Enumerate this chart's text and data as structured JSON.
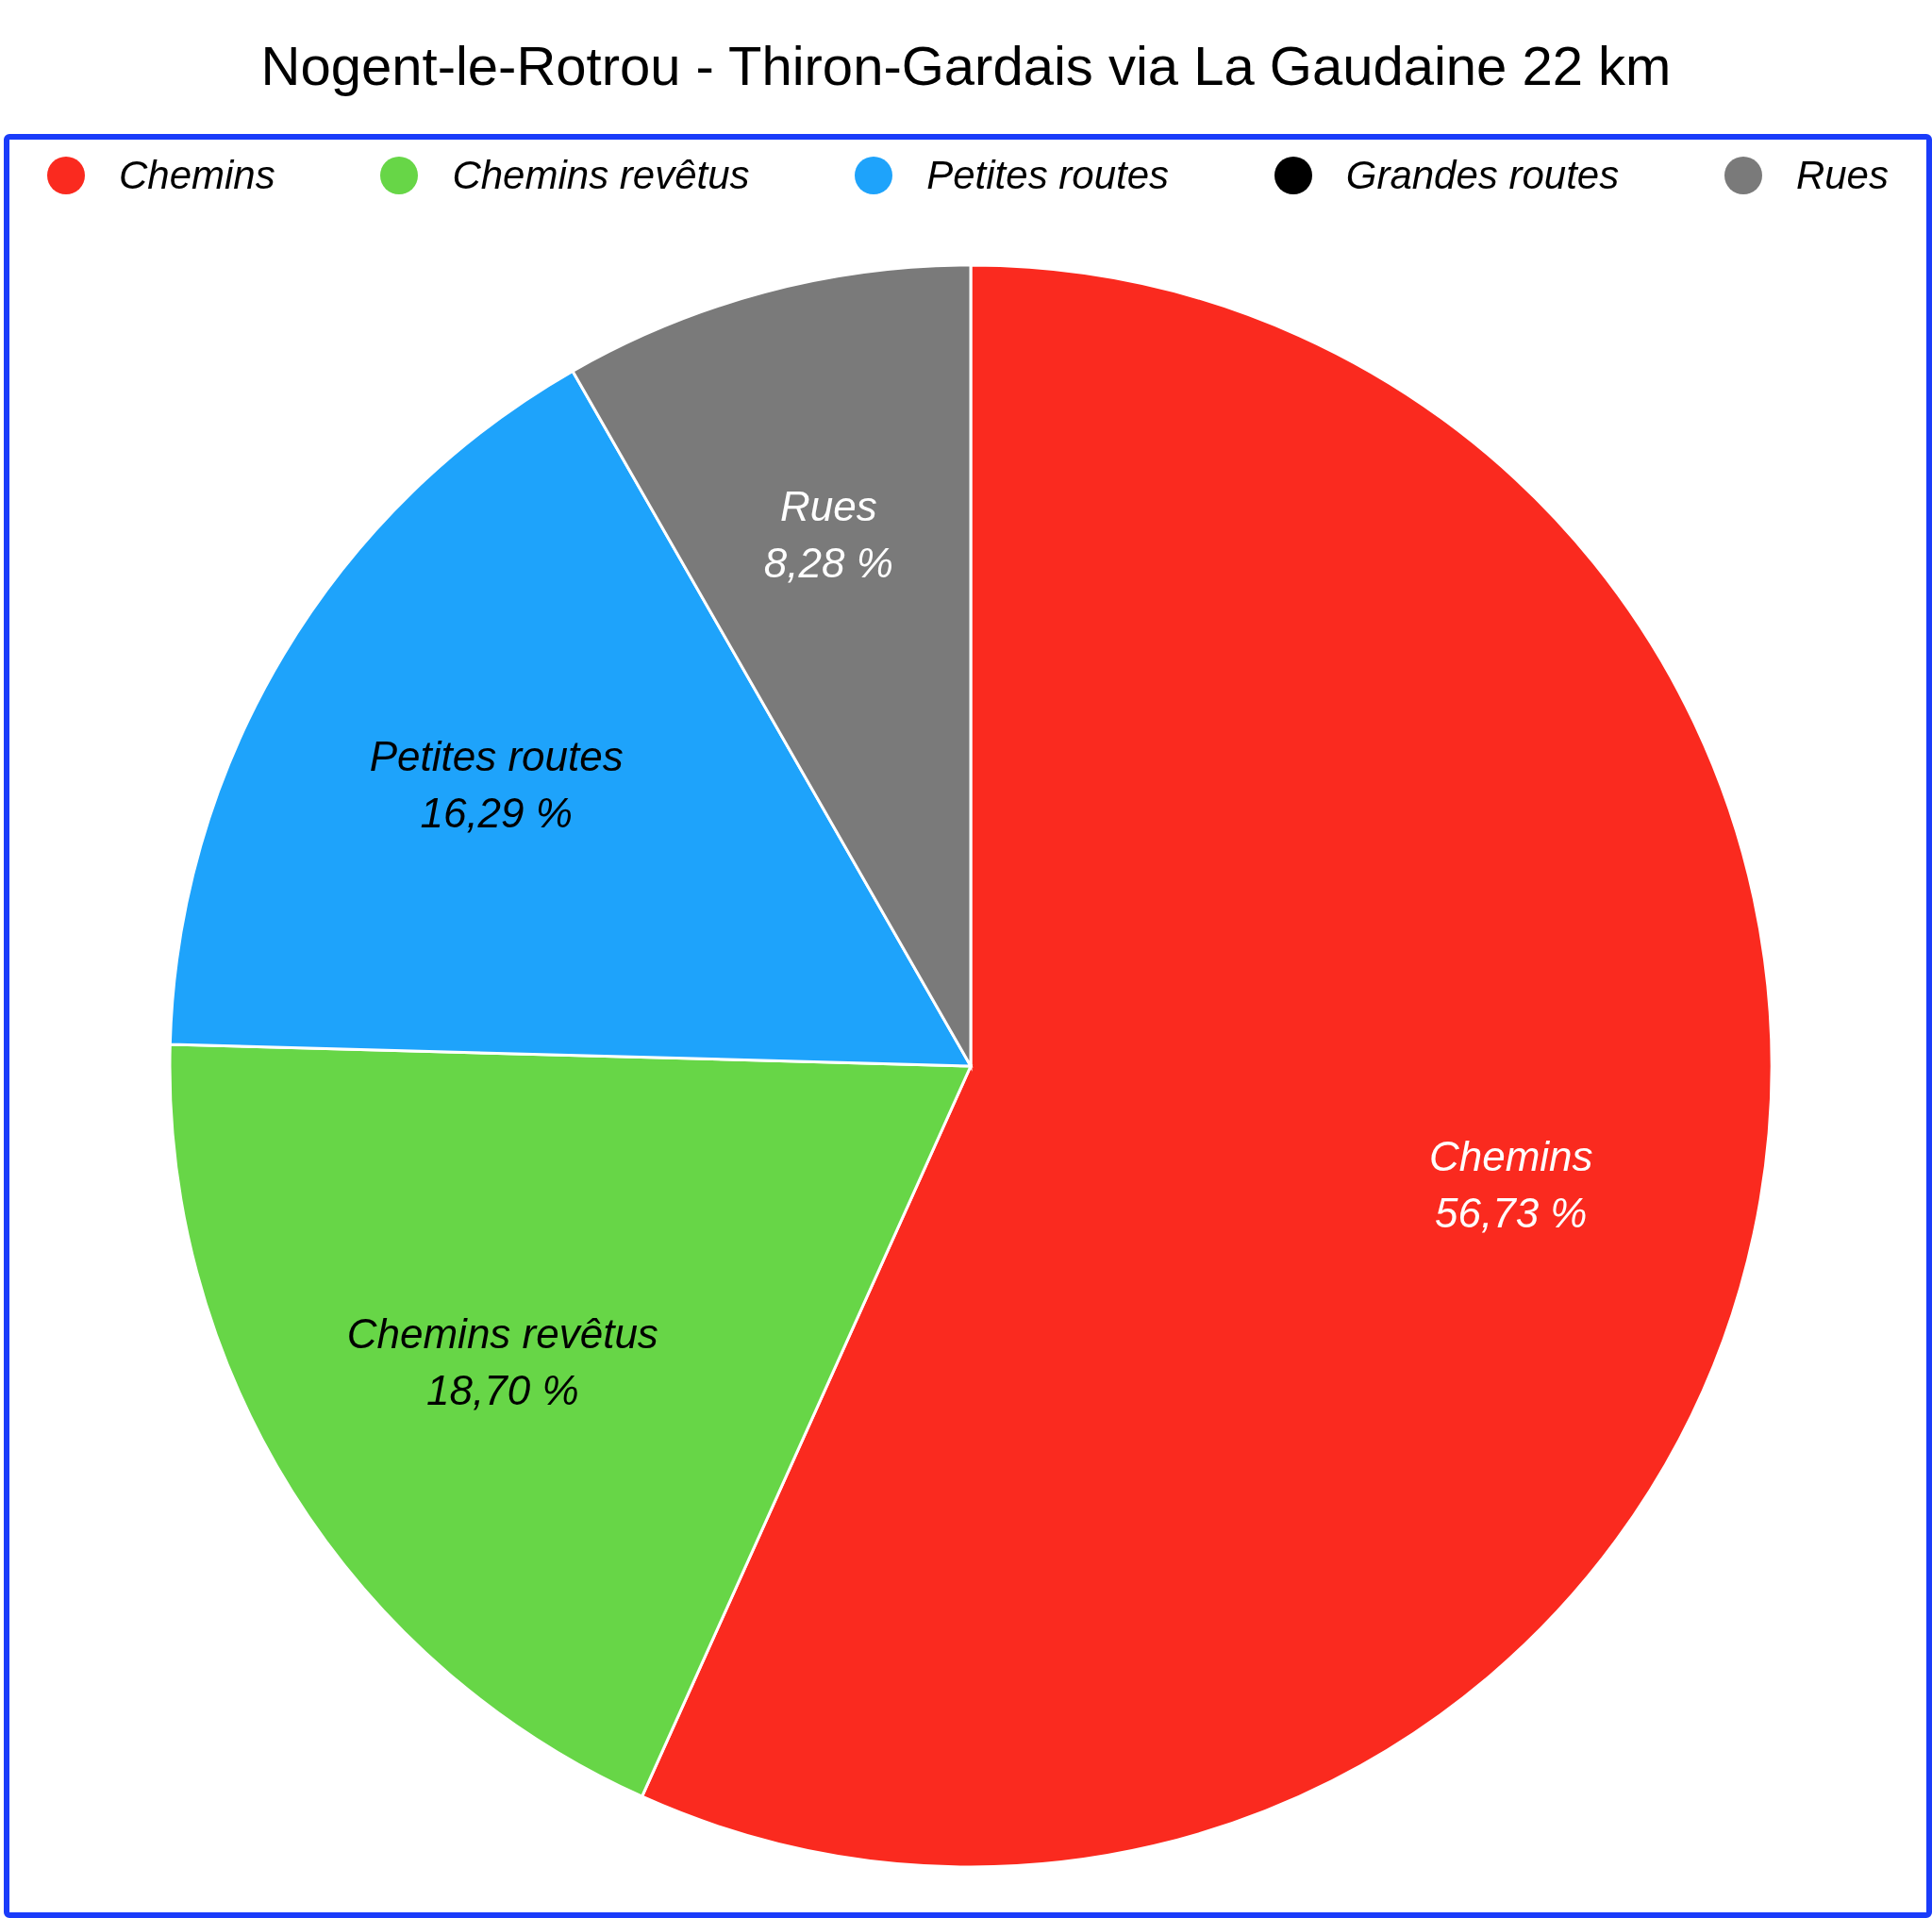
{
  "chart_data": {
    "type": "pie",
    "title": "Nogent-le-Rotrou - Thiron-Gardais via La Gaudaine 22 km",
    "categories": [
      "Chemins",
      "Chemins revêtus",
      "Petites routes",
      "Grandes routes",
      "Rues"
    ],
    "values": [
      56.73,
      18.7,
      16.29,
      0,
      8.28
    ],
    "colors": [
      "#fa2a1f",
      "#67d647",
      "#1ea3fb",
      "#000000",
      "#7a7a7a"
    ],
    "value_labels": [
      "56,73 %",
      "18,70 %",
      "16,29 %",
      null,
      "8,28 %"
    ],
    "legend": "top"
  }
}
